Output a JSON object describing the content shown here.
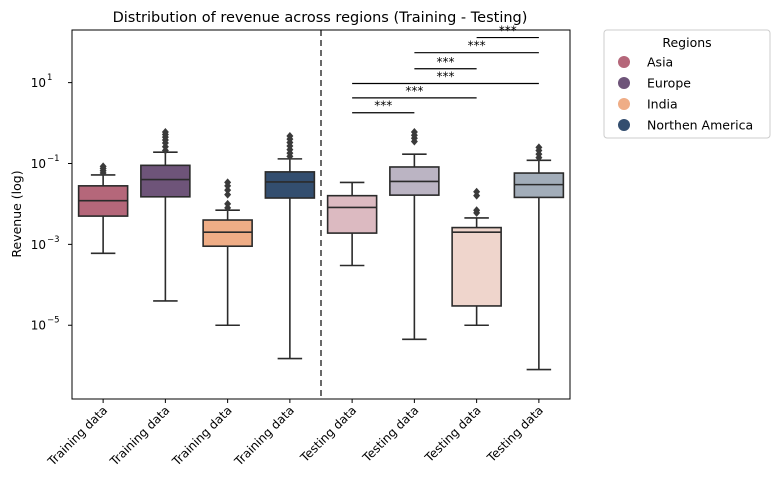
{
  "chart_data": {
    "type": "box",
    "title": "Distribution of revenue across regions (Training - Testing)",
    "xlabel": "",
    "ylabel": "Revenue (log)",
    "yscale": "log",
    "ylim": [
      1.5e-07,
      200
    ],
    "yticks": [
      {
        "value": 10,
        "base": "10",
        "exp": "1"
      },
      {
        "value": 0.1,
        "base": "10",
        "exp": "−1"
      },
      {
        "value": 0.001,
        "base": "10",
        "exp": "−3"
      },
      {
        "value": 1e-05,
        "base": "10",
        "exp": "−5"
      }
    ],
    "categories": [
      "Training data",
      "Training data",
      "Training data",
      "Training data",
      "Testing data",
      "Testing data",
      "Testing data",
      "Testing data"
    ],
    "divider_after_index": 3,
    "legend": {
      "title": "Regions",
      "position": "outside-right",
      "items": [
        {
          "label": "Asia",
          "color": "#b5677a"
        },
        {
          "label": "Europe",
          "color": "#6e5479"
        },
        {
          "label": "India",
          "color": "#efad86"
        },
        {
          "label": "Northen America",
          "color": "#334e6f"
        }
      ]
    },
    "boxes": [
      {
        "region": "Asia",
        "color": "#b5677a",
        "min": 0.0006,
        "q1": 0.005,
        "median": 0.012,
        "q3": 0.028,
        "max": 0.052,
        "outliers": [
          0.058,
          0.066,
          0.075,
          0.085
        ]
      },
      {
        "region": "Europe",
        "color": "#6e5479",
        "min": 4e-05,
        "q1": 0.015,
        "median": 0.04,
        "q3": 0.09,
        "max": 0.19,
        "outliers": [
          0.21,
          0.26,
          0.32,
          0.38,
          0.45,
          0.52,
          0.6
        ]
      },
      {
        "region": "India",
        "color": "#efad86",
        "min": 1e-05,
        "q1": 0.0009,
        "median": 0.002,
        "q3": 0.004,
        "max": 0.007,
        "outliers": [
          0.008,
          0.01,
          0.017,
          0.022,
          0.028,
          0.034
        ]
      },
      {
        "region": "Northen America",
        "color": "#334e6f",
        "min": 1.5e-06,
        "q1": 0.014,
        "median": 0.035,
        "q3": 0.062,
        "max": 0.13,
        "outliers": [
          0.15,
          0.18,
          0.22,
          0.27,
          0.33,
          0.4,
          0.48
        ]
      },
      {
        "region": "Asia",
        "color": "#dcbac1",
        "min": 0.0003,
        "q1": 0.0019,
        "median": 0.0082,
        "q3": 0.016,
        "max": 0.034,
        "outliers": []
      },
      {
        "region": "Europe",
        "color": "#bbb4c3",
        "min": 4.5e-06,
        "q1": 0.0165,
        "median": 0.036,
        "q3": 0.082,
        "max": 0.17,
        "outliers": [
          0.35,
          0.42,
          0.5,
          0.6
        ]
      },
      {
        "region": "India",
        "color": "#efd5cc",
        "min": 1e-05,
        "q1": 3e-05,
        "median": 0.002,
        "q3": 0.0026,
        "max": 0.0045,
        "outliers": [
          0.006,
          0.007,
          0.016,
          0.02
        ]
      },
      {
        "region": "Northen America",
        "color": "#a2adb9",
        "min": 8e-07,
        "q1": 0.0145,
        "median": 0.03,
        "q3": 0.058,
        "max": 0.12,
        "outliers": [
          0.14,
          0.17,
          0.21,
          0.25
        ]
      }
    ],
    "annotations": [
      {
        "from": 4,
        "to": 5,
        "y": 1.8,
        "label": "***"
      },
      {
        "from": 4,
        "to": 6,
        "y": 4.2,
        "label": "***"
      },
      {
        "from": 4,
        "to": 7,
        "y": 9.5,
        "label": "***"
      },
      {
        "from": 5,
        "to": 6,
        "y": 22,
        "label": "***"
      },
      {
        "from": 5,
        "to": 7,
        "y": 55,
        "label": "***"
      },
      {
        "from": 6,
        "to": 7,
        "y": 130,
        "label": "***"
      }
    ]
  }
}
